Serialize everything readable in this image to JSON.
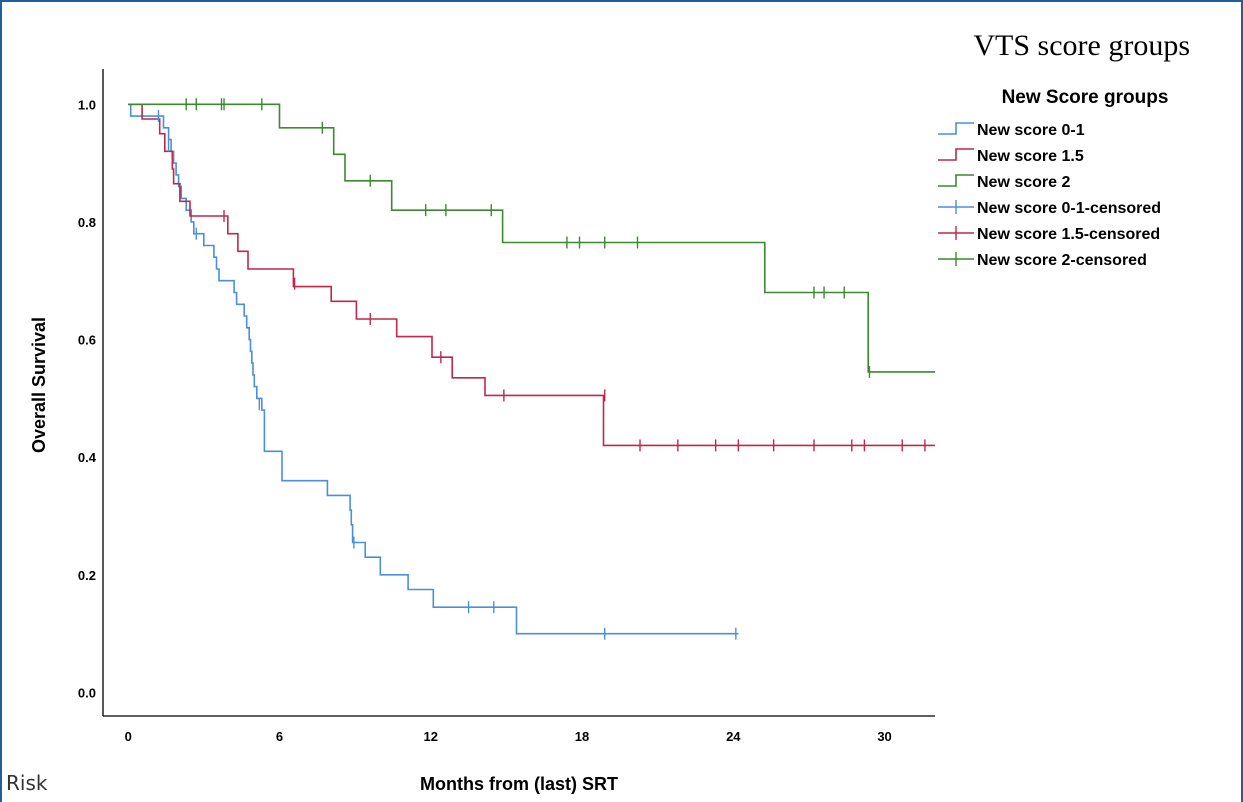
{
  "chart_data": {
    "type": "line",
    "subtype": "kaplan-meier",
    "title": "VTS score groups",
    "xlabel": "Months from (last) SRT",
    "ylabel": "Overall Survival",
    "xlim": [
      -1,
      32
    ],
    "ylim": [
      -0.04,
      1.06
    ],
    "xticks": [
      0,
      6,
      12,
      18,
      24,
      30
    ],
    "yticks": [
      0.0,
      0.2,
      0.4,
      0.6,
      0.8,
      1.0
    ],
    "xtick_labels": [
      "0",
      "6",
      "12",
      "18",
      "24",
      "30"
    ],
    "ytick_labels": [
      "0.0",
      "0.2",
      "0.4",
      "0.6",
      "0.8",
      "1.0"
    ],
    "grid": false,
    "legend_title": "New Score groups",
    "legend_placement": "top-right, outside plot",
    "legend_entries": [
      "New score 0-1",
      "New score 1.5",
      "New score 2",
      "New score 0-1-censored",
      "New score 1.5-censored",
      "New score 2-censored"
    ],
    "series": [
      {
        "name": "New score 0-1",
        "color": "#4a90d9",
        "steps": [
          [
            0,
            1.0
          ],
          [
            0.1,
            0.98
          ],
          [
            1.2,
            0.98
          ],
          [
            1.4,
            0.96
          ],
          [
            1.6,
            0.94
          ],
          [
            1.7,
            0.92
          ],
          [
            1.8,
            0.9
          ],
          [
            1.9,
            0.88
          ],
          [
            2.0,
            0.86
          ],
          [
            2.1,
            0.84
          ],
          [
            2.3,
            0.82
          ],
          [
            2.5,
            0.8
          ],
          [
            2.6,
            0.78
          ],
          [
            2.9,
            0.78
          ],
          [
            3.0,
            0.76
          ],
          [
            3.4,
            0.74
          ],
          [
            3.5,
            0.72
          ],
          [
            3.6,
            0.7
          ],
          [
            4.1,
            0.7
          ],
          [
            4.2,
            0.68
          ],
          [
            4.3,
            0.66
          ],
          [
            4.6,
            0.64
          ],
          [
            4.7,
            0.62
          ],
          [
            4.8,
            0.6
          ],
          [
            4.85,
            0.58
          ],
          [
            4.9,
            0.56
          ],
          [
            4.95,
            0.54
          ],
          [
            5.0,
            0.52
          ],
          [
            5.1,
            0.5
          ],
          [
            5.3,
            0.48
          ],
          [
            5.4,
            0.41
          ],
          [
            6.0,
            0.41
          ],
          [
            6.1,
            0.36
          ],
          [
            7.8,
            0.36
          ],
          [
            7.9,
            0.335
          ],
          [
            8.7,
            0.335
          ],
          [
            8.8,
            0.31
          ],
          [
            8.85,
            0.285
          ],
          [
            8.9,
            0.255
          ],
          [
            9.3,
            0.255
          ],
          [
            9.4,
            0.23
          ],
          [
            9.9,
            0.23
          ],
          [
            10.0,
            0.2
          ],
          [
            11.0,
            0.2
          ],
          [
            11.1,
            0.175
          ],
          [
            12.0,
            0.175
          ],
          [
            12.1,
            0.145
          ],
          [
            15.3,
            0.145
          ],
          [
            15.4,
            0.1
          ],
          [
            24.2,
            0.1
          ]
        ],
        "censored": [
          [
            1.2,
            0.98
          ],
          [
            1.6,
            0.93
          ],
          [
            2.7,
            0.78
          ],
          [
            5.2,
            0.49
          ],
          [
            8.95,
            0.255
          ],
          [
            13.5,
            0.145
          ],
          [
            14.5,
            0.145
          ],
          [
            18.9,
            0.1
          ],
          [
            24.1,
            0.1
          ]
        ]
      },
      {
        "name": "New score 1.5",
        "color": "#c0274a",
        "steps": [
          [
            0,
            1.0
          ],
          [
            0.5,
            1.0
          ],
          [
            0.55,
            0.975
          ],
          [
            1.2,
            0.975
          ],
          [
            1.25,
            0.95
          ],
          [
            1.4,
            0.95
          ],
          [
            1.45,
            0.92
          ],
          [
            1.7,
            0.92
          ],
          [
            1.75,
            0.89
          ],
          [
            1.8,
            0.865
          ],
          [
            2.0,
            0.865
          ],
          [
            2.05,
            0.835
          ],
          [
            2.4,
            0.835
          ],
          [
            2.45,
            0.81
          ],
          [
            3.9,
            0.81
          ],
          [
            3.95,
            0.78
          ],
          [
            4.3,
            0.78
          ],
          [
            4.35,
            0.75
          ],
          [
            4.7,
            0.75
          ],
          [
            4.75,
            0.72
          ],
          [
            6.5,
            0.72
          ],
          [
            6.55,
            0.69
          ],
          [
            8.0,
            0.69
          ],
          [
            8.05,
            0.665
          ],
          [
            9.0,
            0.665
          ],
          [
            9.05,
            0.635
          ],
          [
            10.6,
            0.635
          ],
          [
            10.65,
            0.605
          ],
          [
            12.0,
            0.605
          ],
          [
            12.05,
            0.57
          ],
          [
            12.8,
            0.57
          ],
          [
            12.85,
            0.535
          ],
          [
            14.1,
            0.535
          ],
          [
            14.15,
            0.505
          ],
          [
            18.8,
            0.505
          ],
          [
            18.85,
            0.42
          ],
          [
            32.0,
            0.42
          ]
        ],
        "censored": [
          [
            3.8,
            0.81
          ],
          [
            6.6,
            0.695
          ],
          [
            9.6,
            0.635
          ],
          [
            12.4,
            0.57
          ],
          [
            14.9,
            0.505
          ],
          [
            18.9,
            0.505
          ],
          [
            20.3,
            0.42
          ],
          [
            21.8,
            0.42
          ],
          [
            23.3,
            0.42
          ],
          [
            24.2,
            0.42
          ],
          [
            25.6,
            0.42
          ],
          [
            27.2,
            0.42
          ],
          [
            28.7,
            0.42
          ],
          [
            29.2,
            0.42
          ],
          [
            30.7,
            0.42
          ],
          [
            31.6,
            0.42
          ]
        ]
      },
      {
        "name": "New score 2",
        "color": "#3a8a2e",
        "steps": [
          [
            0,
            1.0
          ],
          [
            5.95,
            1.0
          ],
          [
            6.0,
            0.96
          ],
          [
            8.1,
            0.96
          ],
          [
            8.15,
            0.915
          ],
          [
            8.55,
            0.915
          ],
          [
            8.6,
            0.87
          ],
          [
            10.4,
            0.87
          ],
          [
            10.45,
            0.82
          ],
          [
            14.8,
            0.82
          ],
          [
            14.85,
            0.765
          ],
          [
            25.2,
            0.765
          ],
          [
            25.25,
            0.68
          ],
          [
            29.3,
            0.68
          ],
          [
            29.35,
            0.545
          ],
          [
            32.0,
            0.545
          ]
        ],
        "censored": [
          [
            2.3,
            1.0
          ],
          [
            2.7,
            1.0
          ],
          [
            3.7,
            1.0
          ],
          [
            3.8,
            1.0
          ],
          [
            5.3,
            1.0
          ],
          [
            7.7,
            0.96
          ],
          [
            9.6,
            0.87
          ],
          [
            11.8,
            0.82
          ],
          [
            12.6,
            0.82
          ],
          [
            14.4,
            0.82
          ],
          [
            17.4,
            0.765
          ],
          [
            17.9,
            0.765
          ],
          [
            18.9,
            0.765
          ],
          [
            20.2,
            0.765
          ],
          [
            27.2,
            0.68
          ],
          [
            27.6,
            0.68
          ],
          [
            28.4,
            0.68
          ],
          [
            29.4,
            0.545
          ]
        ]
      }
    ]
  },
  "corner_label": "Risk"
}
